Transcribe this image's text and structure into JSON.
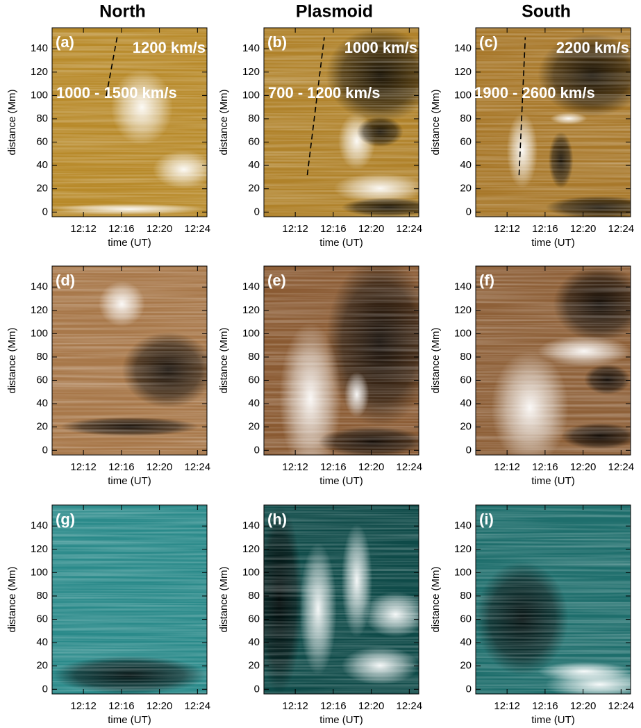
{
  "chart_data": [
    {
      "type": "heatmap",
      "title": "North",
      "panel_label": "(a)",
      "color": "#b88a2a",
      "annotations": [
        "1200 km/s",
        "1000 - 1500 km/s"
      ],
      "xlabel": "time (UT)",
      "ylabel": "distance (Mm)",
      "xlim": [
        728.7,
        745
      ],
      "xticks": [
        {
          "value": 732,
          "label": "12:12"
        },
        {
          "value": 736,
          "label": "12:16"
        },
        {
          "value": 740,
          "label": "12:20"
        },
        {
          "value": 744,
          "label": "12:24"
        }
      ],
      "ylim": [
        -4,
        158
      ],
      "yticks": [
        0,
        20,
        40,
        60,
        80,
        100,
        120,
        140
      ]
    },
    {
      "type": "heatmap",
      "title": "Plasmoid",
      "panel_label": "(b)",
      "color": "#b0822a",
      "annotations": [
        "1000 km/s",
        "700 - 1200 km/s"
      ],
      "xlabel": "time (UT)",
      "ylabel": "distance (Mm)",
      "xlim": [
        728.7,
        745
      ],
      "xticks": [
        {
          "value": 732,
          "label": "12:12"
        },
        {
          "value": 736,
          "label": "12:16"
        },
        {
          "value": 740,
          "label": "12:20"
        },
        {
          "value": 744,
          "label": "12:24"
        }
      ],
      "ylim": [
        -4,
        158
      ],
      "yticks": [
        0,
        20,
        40,
        60,
        80,
        100,
        120,
        140
      ]
    },
    {
      "type": "heatmap",
      "title": "South",
      "panel_label": "(c)",
      "color": "#a8782a",
      "annotations": [
        "2200 km/s",
        "1900 - 2600 km/s"
      ],
      "xlabel": "time (UT)",
      "ylabel": "distance (Mm)",
      "xlim": [
        728.7,
        745
      ],
      "xticks": [
        {
          "value": 732,
          "label": "12:12"
        },
        {
          "value": 736,
          "label": "12:16"
        },
        {
          "value": 740,
          "label": "12:20"
        },
        {
          "value": 744,
          "label": "12:24"
        }
      ],
      "ylim": [
        -4,
        158
      ],
      "yticks": [
        0,
        20,
        40,
        60,
        80,
        100,
        120,
        140
      ]
    },
    {
      "type": "heatmap",
      "panel_label": "(d)",
      "color": "#a8784a",
      "xlabel": "time (UT)",
      "ylabel": "distance (Mm)",
      "xlim": [
        728.7,
        745
      ],
      "xticks": [
        {
          "value": 732,
          "label": "12:12"
        },
        {
          "value": 736,
          "label": "12:16"
        },
        {
          "value": 740,
          "label": "12:20"
        },
        {
          "value": 744,
          "label": "12:24"
        }
      ],
      "ylim": [
        -4,
        158
      ],
      "yticks": [
        0,
        20,
        40,
        60,
        80,
        100,
        120,
        140
      ]
    },
    {
      "type": "heatmap",
      "panel_label": "(e)",
      "color": "#8a5a32",
      "xlabel": "time (UT)",
      "ylabel": "distance (Mm)",
      "xlim": [
        728.7,
        745
      ],
      "xticks": [
        {
          "value": 732,
          "label": "12:12"
        },
        {
          "value": 736,
          "label": "12:16"
        },
        {
          "value": 740,
          "label": "12:20"
        },
        {
          "value": 744,
          "label": "12:24"
        }
      ],
      "ylim": [
        -4,
        158
      ],
      "yticks": [
        0,
        20,
        40,
        60,
        80,
        100,
        120,
        140
      ]
    },
    {
      "type": "heatmap",
      "panel_label": "(f)",
      "color": "#8e6038",
      "xlabel": "time (UT)",
      "ylabel": "distance (Mm)",
      "xlim": [
        728.7,
        745
      ],
      "xticks": [
        {
          "value": 732,
          "label": "12:12"
        },
        {
          "value": 736,
          "label": "12:16"
        },
        {
          "value": 740,
          "label": "12:20"
        },
        {
          "value": 744,
          "label": "12:24"
        }
      ],
      "ylim": [
        -4,
        158
      ],
      "yticks": [
        0,
        20,
        40,
        60,
        80,
        100,
        120,
        140
      ]
    },
    {
      "type": "heatmap",
      "panel_label": "(g)",
      "color": "#2a8a8a",
      "xlabel": "time (UT)",
      "ylabel": "distance (Mm)",
      "xlim": [
        728.7,
        745
      ],
      "xticks": [
        {
          "value": 732,
          "label": "12:12"
        },
        {
          "value": 736,
          "label": "12:16"
        },
        {
          "value": 740,
          "label": "12:20"
        },
        {
          "value": 744,
          "label": "12:24"
        }
      ],
      "ylim": [
        -4,
        158
      ],
      "yticks": [
        0,
        20,
        40,
        60,
        80,
        100,
        120,
        140
      ]
    },
    {
      "type": "heatmap",
      "panel_label": "(h)",
      "color": "#0e4a48",
      "xlabel": "time (UT)",
      "ylabel": "distance (Mm)",
      "xlim": [
        728.7,
        745
      ],
      "xticks": [
        {
          "value": 732,
          "label": "12:12"
        },
        {
          "value": 736,
          "label": "12:16"
        },
        {
          "value": 740,
          "label": "12:20"
        },
        {
          "value": 744,
          "label": "12:24"
        }
      ],
      "ylim": [
        -4,
        158
      ],
      "yticks": [
        0,
        20,
        40,
        60,
        80,
        100,
        120,
        140
      ]
    },
    {
      "type": "heatmap",
      "panel_label": "(i)",
      "color": "#1e6e6c",
      "xlabel": "time (UT)",
      "ylabel": "distance (Mm)",
      "xlim": [
        728.7,
        745
      ],
      "xticks": [
        {
          "value": 732,
          "label": "12:12"
        },
        {
          "value": 736,
          "label": "12:16"
        },
        {
          "value": 740,
          "label": "12:20"
        },
        {
          "value": 744,
          "label": "12:24"
        }
      ],
      "ylim": [
        -4,
        158
      ],
      "yticks": [
        0,
        20,
        40,
        60,
        80,
        100,
        120,
        140
      ]
    }
  ]
}
